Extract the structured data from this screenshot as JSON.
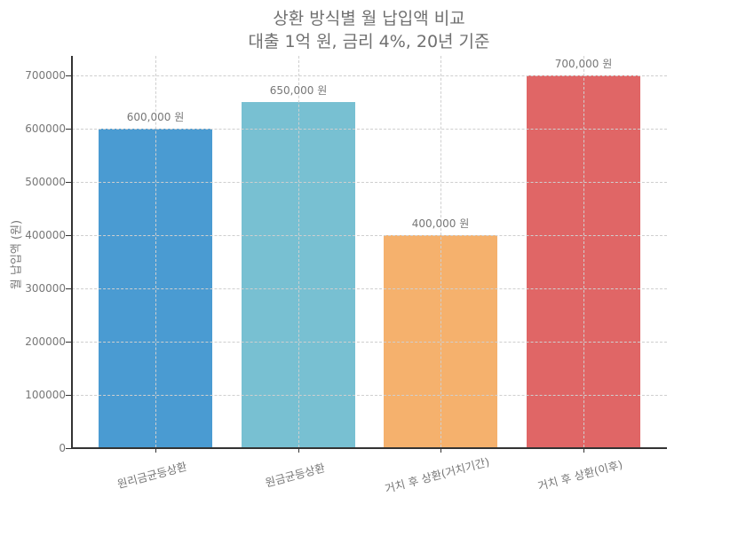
{
  "chart_data": {
    "type": "bar",
    "title": "상환 방식별 월 납입액 비교",
    "subtitle": "대출 1억 원, 금리 4%, 20년 기준",
    "xlabel": "",
    "ylabel": "월 납입액 (원)",
    "categories": [
      "원리금균등상환",
      "원금균등상환",
      "거치 후 상환(거치기간)",
      "거치 후 상환(이후)"
    ],
    "values": [
      600000,
      650000,
      400000,
      700000
    ],
    "value_labels": [
      "600,000 원",
      "650,000 원",
      "400,000 원",
      "700,000 원"
    ],
    "colors": [
      "#4a9bd2",
      "#78c0d2",
      "#f5b16d",
      "#e06666"
    ],
    "ylim": [
      0,
      735000
    ],
    "yticks": [
      "0",
      "100000",
      "200000",
      "300000",
      "400000",
      "500000",
      "600000",
      "700000"
    ],
    "grid": true,
    "grid_style": "dashed",
    "legend": null,
    "xtick_rotation": 15
  }
}
